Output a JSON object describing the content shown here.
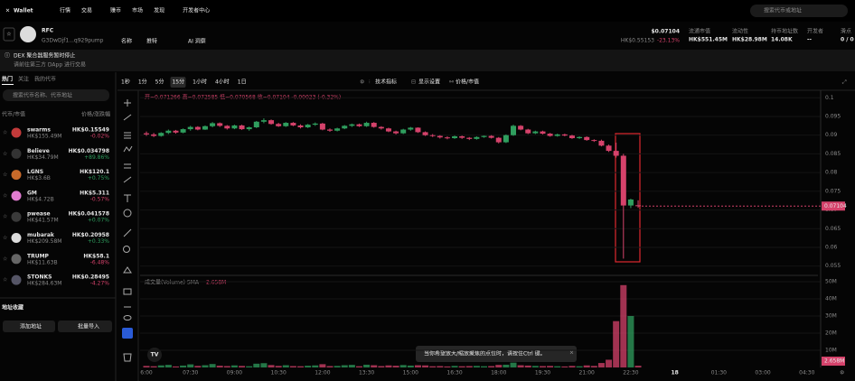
{
  "nav": {
    "brand": "Wallet",
    "items": [
      "行情",
      "交易",
      "赚币",
      "市场",
      "发现",
      "开发者中心"
    ],
    "search": "搜索代币或地址"
  },
  "token": {
    "symbol": "RFC",
    "address": "G3DwDjf1...q929pump",
    "links": [
      "名称",
      "推特",
      "AI 洞察"
    ],
    "price": "$0.07104",
    "price_hkd": "HK$0.55153",
    "change": "-23.13%",
    "stats": [
      {
        "label": "流通市值",
        "value": "HK$551.45M"
      },
      {
        "label": "流动性",
        "value": "HK$28.98M"
      },
      {
        "label": "持币地址数",
        "value": "14.08K"
      },
      {
        "label": "开发者",
        "value": "--"
      },
      {
        "label": "滑点",
        "value": "0 / 0"
      }
    ]
  },
  "notice": {
    "title": "DEX 聚合器服务暂时停止",
    "text": "请前往第三方 DApp 进行交易"
  },
  "sidebar": {
    "tabs": [
      "热门",
      "关注",
      "我的代币"
    ],
    "search": "搜索代币名称、代币地址",
    "col_left": "代币/市值",
    "col_right": "价格/涨跌幅",
    "tokens": [
      {
        "name": "swarms",
        "mcap": "HK$155.49M",
        "price": "HK$0.15549",
        "change": "-0.02%"
      },
      {
        "name": "Believe",
        "mcap": "HK$34.79M",
        "price": "HK$0.034798",
        "change": "+89.86%"
      },
      {
        "name": "LGNS",
        "mcap": "HK$3.6B",
        "price": "HK$120.1",
        "change": "+0.75%"
      },
      {
        "name": "GM",
        "mcap": "HK$4.72B",
        "price": "HK$5.311",
        "change": "-0.57%"
      },
      {
        "name": "pwease",
        "mcap": "HK$41.57M",
        "price": "HK$0.041578",
        "change": "+0.07%"
      },
      {
        "name": "mubarak",
        "mcap": "HK$209.58M",
        "price": "HK$0.20958",
        "change": "+0.33%"
      },
      {
        "name": "TRUMP",
        "mcap": "HK$11.63B",
        "price": "HK$58.1",
        "change": "-6.48%"
      },
      {
        "name": "STONKS",
        "mcap": "HK$284.63M",
        "price": "HK$0.28495",
        "change": "-4.27%"
      }
    ],
    "favorites": "地址收藏",
    "buttons": [
      "添加地址",
      "批量导入"
    ]
  },
  "toolbar": {
    "intervals": [
      "1秒",
      "1分",
      "5分",
      "15分",
      "1小时",
      "4小时",
      "1日"
    ],
    "indicators": "技术指标",
    "display": "显示设置",
    "price_toggle": "价格/市值"
  },
  "chart_data": {
    "type": "candlestick",
    "ohlc_legend": "开=0.071266 高=0.072585 低=0.070568 收=0.07104 -0.00023 (-0.32%)",
    "candles": [
      [
        0.0905,
        0.091,
        0.0898,
        0.0902
      ],
      [
        0.0902,
        0.0906,
        0.0895,
        0.0898
      ],
      [
        0.0898,
        0.0908,
        0.0896,
        0.0906
      ],
      [
        0.0906,
        0.0915,
        0.0903,
        0.0912
      ],
      [
        0.0912,
        0.0914,
        0.0904,
        0.0907
      ],
      [
        0.0907,
        0.0918,
        0.0905,
        0.0916
      ],
      [
        0.0916,
        0.0925,
        0.0912,
        0.0922
      ],
      [
        0.0922,
        0.0924,
        0.0913,
        0.0915
      ],
      [
        0.0915,
        0.0926,
        0.0914,
        0.0924
      ],
      [
        0.0924,
        0.0935,
        0.0921,
        0.0932
      ],
      [
        0.0932,
        0.0934,
        0.0922,
        0.0925
      ],
      [
        0.0925,
        0.0927,
        0.0915,
        0.0918
      ],
      [
        0.0918,
        0.0928,
        0.0916,
        0.0926
      ],
      [
        0.0926,
        0.0928,
        0.0914,
        0.0916
      ],
      [
        0.0916,
        0.0923,
        0.0912,
        0.0921
      ],
      [
        0.0921,
        0.0938,
        0.0919,
        0.0936
      ],
      [
        0.0936,
        0.0945,
        0.0932,
        0.094
      ],
      [
        0.094,
        0.0942,
        0.0928,
        0.093
      ],
      [
        0.093,
        0.0933,
        0.0922,
        0.0924
      ],
      [
        0.0924,
        0.0935,
        0.0922,
        0.0933
      ],
      [
        0.0933,
        0.0935,
        0.0924,
        0.0926
      ],
      [
        0.0926,
        0.0929,
        0.0918,
        0.0921
      ],
      [
        0.0921,
        0.093,
        0.0919,
        0.0928
      ],
      [
        0.0928,
        0.0934,
        0.0925,
        0.0931
      ],
      [
        0.0931,
        0.0933,
        0.0913,
        0.0915
      ],
      [
        0.0915,
        0.0918,
        0.0909,
        0.0912
      ],
      [
        0.0912,
        0.092,
        0.091,
        0.0918
      ],
      [
        0.0918,
        0.0927,
        0.0916,
        0.0925
      ],
      [
        0.0925,
        0.0931,
        0.0922,
        0.0929
      ],
      [
        0.0929,
        0.0931,
        0.0922,
        0.0924
      ],
      [
        0.0924,
        0.0936,
        0.0922,
        0.0933
      ],
      [
        0.0933,
        0.0935,
        0.092,
        0.0922
      ],
      [
        0.0922,
        0.0924,
        0.0915,
        0.0918
      ],
      [
        0.0918,
        0.092,
        0.0908,
        0.091
      ],
      [
        0.091,
        0.0912,
        0.0902,
        0.0905
      ],
      [
        0.0905,
        0.0917,
        0.0903,
        0.0915
      ],
      [
        0.0915,
        0.0922,
        0.0912,
        0.092
      ],
      [
        0.092,
        0.0921,
        0.0906,
        0.0908
      ],
      [
        0.0908,
        0.091,
        0.0898,
        0.09
      ],
      [
        0.09,
        0.0903,
        0.0895,
        0.0898
      ],
      [
        0.0898,
        0.09,
        0.0891,
        0.0894
      ],
      [
        0.0894,
        0.0897,
        0.0889,
        0.0892
      ],
      [
        0.0892,
        0.0899,
        0.089,
        0.0897
      ],
      [
        0.0897,
        0.0899,
        0.089,
        0.0893
      ],
      [
        0.0893,
        0.0895,
        0.0887,
        0.089
      ],
      [
        0.089,
        0.0897,
        0.0888,
        0.0895
      ],
      [
        0.0895,
        0.0899,
        0.0893,
        0.0898
      ],
      [
        0.0898,
        0.09,
        0.0891,
        0.0893
      ],
      [
        0.0893,
        0.0895,
        0.0878,
        0.0881
      ],
      [
        0.0881,
        0.0902,
        0.0879,
        0.09
      ],
      [
        0.09,
        0.0928,
        0.0898,
        0.0925
      ],
      [
        0.0925,
        0.0927,
        0.0913,
        0.0915
      ],
      [
        0.0915,
        0.0917,
        0.0903,
        0.0905
      ],
      [
        0.0905,
        0.0912,
        0.0903,
        0.091
      ],
      [
        0.091,
        0.0912,
        0.0902,
        0.0904
      ],
      [
        0.0904,
        0.0906,
        0.0896,
        0.0898
      ],
      [
        0.0898,
        0.0904,
        0.0896,
        0.0902
      ],
      [
        0.0902,
        0.0904,
        0.0897,
        0.0899
      ],
      [
        0.0899,
        0.0901,
        0.089,
        0.0892
      ],
      [
        0.0892,
        0.0897,
        0.089,
        0.0895
      ],
      [
        0.0895,
        0.0897,
        0.0885,
        0.0887
      ],
      [
        0.0887,
        0.0889,
        0.0882,
        0.0885
      ],
      [
        0.0885,
        0.0888,
        0.087,
        0.0872
      ],
      [
        0.0872,
        0.0875,
        0.0855,
        0.0858
      ],
      [
        0.0858,
        0.088,
        0.084,
        0.0845
      ],
      [
        0.0845,
        0.085,
        0.057,
        0.0712
      ],
      [
        0.0712,
        0.073,
        0.0705,
        0.0728
      ],
      [
        0.071266,
        0.072585,
        0.070568,
        0.07104
      ]
    ],
    "volumes": [
      900000,
      700000,
      1200000,
      1500000,
      600000,
      1100000,
      1800000,
      900000,
      1300000,
      2000000,
      1000000,
      800000,
      1200000,
      900000,
      700000,
      2200000,
      2500000,
      1400000,
      900000,
      1300000,
      800000,
      700000,
      1000000,
      1200000,
      1900000,
      800000,
      900000,
      1300000,
      1500000,
      700000,
      1600000,
      1300000,
      800000,
      1200000,
      1000000,
      1400000,
      1100000,
      1300000,
      1200000,
      700000,
      800000,
      600000,
      900000,
      700000,
      800000,
      900000,
      700000,
      800000,
      1500000,
      1600000,
      2800000,
      1300000,
      1100000,
      900000,
      800000,
      900000,
      700000,
      600000,
      900000,
      700000,
      1200000,
      900000,
      2600000,
      4500000,
      27000000,
      48000000,
      30000000,
      1000000
    ],
    "ylim": [
      0.053,
      0.102
    ],
    "yticks": [
      0.055,
      0.06,
      0.065,
      0.07,
      0.075,
      0.08,
      0.085,
      0.09,
      0.095,
      0.1
    ],
    "volume_title": "成交量(Volume) SMA",
    "volume_sma": "2.658M",
    "vlim": [
      0,
      50000000
    ],
    "vticks": [
      {
        "value": 10000000,
        "label": "10M"
      },
      {
        "value": 20000000,
        "label": "20M"
      },
      {
        "value": 30000000,
        "label": "30M"
      },
      {
        "value": 40000000,
        "label": "40M"
      },
      {
        "value": 50000000,
        "label": "50M"
      }
    ],
    "xticks": [
      "6:00",
      "07:30",
      "09:00",
      "10:30",
      "12:00",
      "13:30",
      "15:00",
      "16:30",
      "18:00",
      "19:30",
      "21:00",
      "22:30",
      "18",
      "01:30",
      "03:00",
      "04:30"
    ],
    "colors": {
      "up": "#2f9e5e",
      "down": "#d5426b"
    },
    "hint": "当你希望放大/缩放聚焦的点位时，请按住Ctrl 键。"
  }
}
